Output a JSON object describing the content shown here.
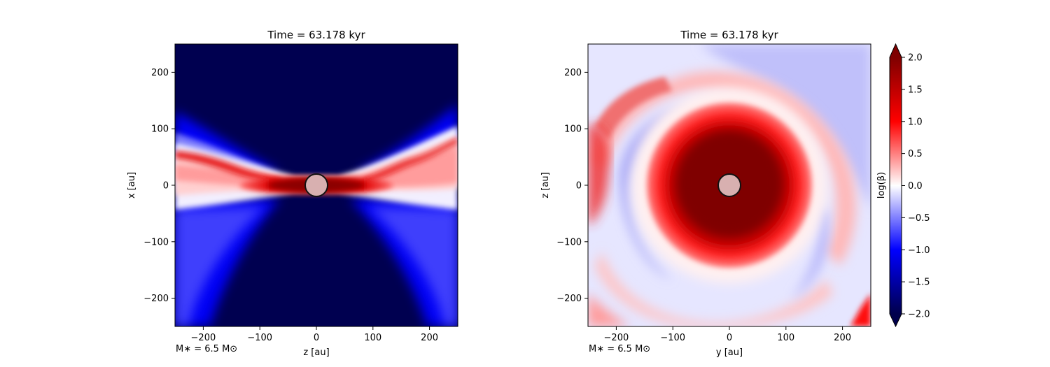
{
  "chart_data": [
    {
      "type": "heatmap",
      "title": "Time = 63.178 kyr",
      "xlabel": "z [au]",
      "ylabel": "x [au]",
      "xlim": [
        -250,
        250
      ],
      "ylim": [
        -250,
        250
      ],
      "xticks": [
        -200,
        -100,
        0,
        100,
        200
      ],
      "yticks": [
        -200,
        -100,
        0,
        100,
        200
      ],
      "annotation": "M$_*$ = 6.5 M$_\\odot$",
      "annotation_display": "M∗ = 6.5 M⊙",
      "sink": {
        "x": 0,
        "y": 0,
        "radius": 20
      },
      "field": "edge-on view: blue (log β ≈ -2) outflow cavities above and below; red (log β ≈ 1.5–2) thin disk midplane out to ~±120 au; pink/white warped layers extending to edges"
    },
    {
      "type": "heatmap",
      "title": "Time = 63.178 kyr",
      "xlabel": "y [au]",
      "ylabel": "z [au]",
      "xlim": [
        -250,
        250
      ],
      "ylim": [
        -250,
        250
      ],
      "xticks": [
        -200,
        -100,
        0,
        100,
        200
      ],
      "yticks": [
        -200,
        -100,
        0,
        100,
        200
      ],
      "annotation": "M$_*$ = 6.5 M$_\\odot$",
      "annotation_display": "M∗ = 6.5 M⊙",
      "sink": {
        "x": 0,
        "y": 0,
        "radius": 20
      },
      "field": "face-on view: dark red core (log β ≈ 2) within ~70 au, red disk to ~110 au, alternating pink and light-blue spiral arms outward"
    }
  ],
  "colorbar": {
    "label": "log(β)",
    "range": [
      -2.0,
      2.0
    ],
    "ticks": [
      "−2.0",
      "−1.5",
      "−1.0",
      "−0.5",
      "0.0",
      "0.5",
      "1.0",
      "1.5",
      "2.0"
    ],
    "tick_values": [
      -2.0,
      -1.5,
      -1.0,
      -0.5,
      0.0,
      0.5,
      1.0,
      1.5,
      2.0
    ],
    "extend": "both",
    "colormap": "seismic",
    "colors": [
      "#00004c",
      "#0000ff",
      "#ffffff",
      "#ff0000",
      "#7f0000"
    ]
  }
}
